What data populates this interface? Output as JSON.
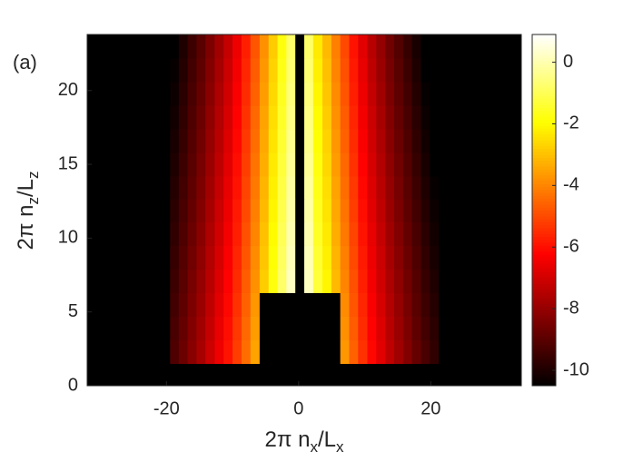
{
  "chart_data": {
    "type": "heatmap",
    "annotation": "(a)",
    "x_label": [
      "2π n",
      "x",
      "/L",
      "x"
    ],
    "y_label": [
      "2π n",
      "z",
      "/L",
      "z"
    ],
    "x": [
      -18.8,
      -17.5,
      -16.1,
      -14.8,
      -13.4,
      -12.0,
      -10.7,
      -9.3,
      -8.0,
      -6.6,
      -5.2,
      -3.9,
      -2.5,
      -1.2,
      0.2,
      1.5,
      2.9,
      4.3,
      5.6,
      7.0,
      8.3,
      9.7,
      11.1,
      12.4,
      13.8,
      15.1,
      16.5,
      17.8,
      19.2,
      20.5
    ],
    "y": [
      2.3,
      3.9,
      5.5,
      7.1,
      8.7,
      10.3,
      11.9,
      13.4,
      15.0,
      16.6,
      18.2,
      19.8,
      21.4,
      23.0
    ],
    "z": [
      [
        -9.2,
        -8.7,
        -8.2,
        -7.7,
        -7.1,
        -6.5,
        -5.9,
        -5.2,
        -4.4,
        -3.5,
        -10.5,
        -10.5,
        -10.5,
        -10.5,
        -10.5,
        -10.5,
        -10.5,
        -10.5,
        -10.5,
        -3.7,
        -4.6,
        -5.4,
        -6.1,
        -6.7,
        -7.3,
        -7.8,
        -8.3,
        -8.8,
        -9.3,
        -9.7
      ],
      [
        -9.3,
        -8.8,
        -8.3,
        -7.8,
        -7.2,
        -6.6,
        -6.0,
        -5.3,
        -4.5,
        -3.6,
        -10.5,
        -10.5,
        -10.5,
        -10.5,
        -10.5,
        -10.5,
        -10.5,
        -10.5,
        -10.5,
        -3.8,
        -4.7,
        -5.5,
        -6.2,
        -6.8,
        -7.4,
        -7.9,
        -8.4,
        -8.9,
        -9.4,
        -9.8
      ],
      [
        -9.4,
        -8.9,
        -8.4,
        -7.9,
        -7.3,
        -6.7,
        -6.1,
        -5.4,
        -4.6,
        -3.7,
        -10.5,
        -10.5,
        -10.5,
        -10.5,
        -10.5,
        -10.5,
        -10.5,
        -10.5,
        -10.5,
        -3.9,
        -4.8,
        -5.6,
        -6.3,
        -6.9,
        -7.5,
        -8.0,
        -8.5,
        -9.0,
        -9.5,
        -9.9
      ],
      [
        -9.5,
        -9.0,
        -8.5,
        -8.0,
        -7.4,
        -6.8,
        -6.2,
        -5.5,
        -4.7,
        -3.8,
        -2.8,
        -1.8,
        -0.8,
        0.2,
        -10.5,
        0.2,
        -1.3,
        -2.1,
        -3.1,
        -4.0,
        -4.9,
        -5.7,
        -6.4,
        -7.0,
        -7.6,
        -8.1,
        -8.6,
        -9.1,
        -9.6,
        -10.0
      ],
      [
        -9.6,
        -9.1,
        -8.6,
        -8.1,
        -7.5,
        -6.9,
        -6.3,
        -5.6,
        -4.8,
        -3.9,
        -2.9,
        -1.9,
        -0.9,
        0.1,
        -10.5,
        0.1,
        -1.4,
        -2.2,
        -3.2,
        -4.1,
        -5.0,
        -5.8,
        -6.5,
        -7.1,
        -7.7,
        -8.2,
        -8.7,
        -9.2,
        -9.7,
        -10.1
      ],
      [
        -9.7,
        -9.2,
        -8.7,
        -8.2,
        -7.6,
        -7.0,
        -6.4,
        -5.7,
        -4.9,
        -4.0,
        -3.0,
        -2.0,
        -1.0,
        0.0,
        -10.5,
        0.0,
        -1.5,
        -2.3,
        -3.3,
        -4.2,
        -5.1,
        -5.9,
        -6.6,
        -7.2,
        -7.8,
        -8.3,
        -8.8,
        -9.3,
        -9.8,
        -10.2
      ],
      [
        -9.8,
        -9.3,
        -8.8,
        -8.3,
        -7.7,
        -7.1,
        -6.5,
        -5.8,
        -5.0,
        -4.1,
        -3.1,
        -2.1,
        -1.1,
        -0.1,
        -10.5,
        -0.1,
        -1.6,
        -2.4,
        -3.4,
        -4.3,
        -5.2,
        -6.0,
        -6.7,
        -7.3,
        -7.9,
        -8.4,
        -8.9,
        -9.4,
        -9.9,
        -10.3
      ],
      [
        -9.9,
        -9.4,
        -8.9,
        -8.4,
        -7.8,
        -7.2,
        -6.6,
        -5.9,
        -5.1,
        -4.2,
        -3.2,
        -2.2,
        -1.2,
        -0.2,
        -10.5,
        -0.2,
        -1.7,
        -2.5,
        -3.5,
        -4.4,
        -5.3,
        -6.1,
        -6.8,
        -7.4,
        -8.0,
        -8.5,
        -9.0,
        -9.5,
        -10.0,
        -10.4
      ],
      [
        -10.0,
        -9.5,
        -9.0,
        -8.5,
        -7.9,
        -7.3,
        -6.7,
        -6.0,
        -5.2,
        -4.3,
        -3.3,
        -2.3,
        -1.3,
        -0.3,
        -10.5,
        -0.3,
        -1.8,
        -2.6,
        -3.6,
        -4.5,
        -5.4,
        -6.2,
        -6.9,
        -7.5,
        -8.1,
        -8.6,
        -9.1,
        -9.6,
        -10.1,
        -10.5
      ],
      [
        -10.1,
        -9.6,
        -9.1,
        -8.6,
        -8.0,
        -7.4,
        -6.8,
        -6.1,
        -5.3,
        -4.4,
        -3.4,
        -2.4,
        -1.4,
        -0.4,
        -10.5,
        -0.4,
        -1.9,
        -2.7,
        -3.7,
        -4.6,
        -5.5,
        -6.3,
        -7.0,
        -7.6,
        -8.2,
        -8.7,
        -9.2,
        -9.7,
        -10.2,
        -10.5
      ],
      [
        -10.2,
        -9.7,
        -9.2,
        -8.7,
        -8.1,
        -7.5,
        -6.9,
        -6.2,
        -5.4,
        -4.5,
        -3.5,
        -2.5,
        -1.5,
        -0.5,
        -10.5,
        -0.5,
        -2.0,
        -2.8,
        -3.8,
        -4.7,
        -5.6,
        -6.4,
        -7.1,
        -7.7,
        -8.3,
        -8.8,
        -9.3,
        -9.8,
        -10.3,
        -10.5
      ],
      [
        -10.3,
        -9.8,
        -9.3,
        -8.8,
        -8.2,
        -7.6,
        -7.0,
        -6.3,
        -5.5,
        -4.6,
        -3.6,
        -2.6,
        -1.6,
        -0.6,
        -10.5,
        -0.6,
        -2.1,
        -2.9,
        -3.9,
        -4.8,
        -5.7,
        -6.5,
        -7.2,
        -7.8,
        -8.4,
        -8.9,
        -9.4,
        -9.9,
        -10.4,
        -10.5
      ],
      [
        -10.4,
        -9.9,
        -9.4,
        -8.9,
        -8.3,
        -7.7,
        -7.1,
        -6.4,
        -5.6,
        -4.7,
        -3.7,
        -2.7,
        -1.7,
        -0.7,
        -10.5,
        -0.7,
        -2.2,
        -3.0,
        -4.0,
        -4.9,
        -5.8,
        -6.6,
        -7.3,
        -7.9,
        -8.5,
        -9.0,
        -9.5,
        -10.0,
        -10.5,
        -10.5
      ],
      [
        -10.5,
        -10.0,
        -9.5,
        -9.0,
        -8.4,
        -7.8,
        -7.2,
        -6.5,
        -5.7,
        -4.8,
        -3.8,
        -2.8,
        -1.8,
        -0.8,
        -10.5,
        -0.8,
        -2.3,
        -3.1,
        -4.1,
        -5.0,
        -5.9,
        -6.7,
        -7.4,
        -8.0,
        -8.6,
        -9.1,
        -9.6,
        -10.1,
        -10.5,
        -10.5
      ]
    ],
    "xlim": [
      -32,
      33.7
    ],
    "ylim": [
      0,
      23.8
    ],
    "xticks": [
      -20,
      0,
      20
    ],
    "yticks": [
      0,
      5,
      10,
      15,
      20
    ],
    "colormap": "hot",
    "background": "#000000",
    "clim": [
      -10.5,
      0.9
    ],
    "cticks": [
      0,
      -2,
      -4,
      -6,
      -8,
      -10
    ]
  }
}
